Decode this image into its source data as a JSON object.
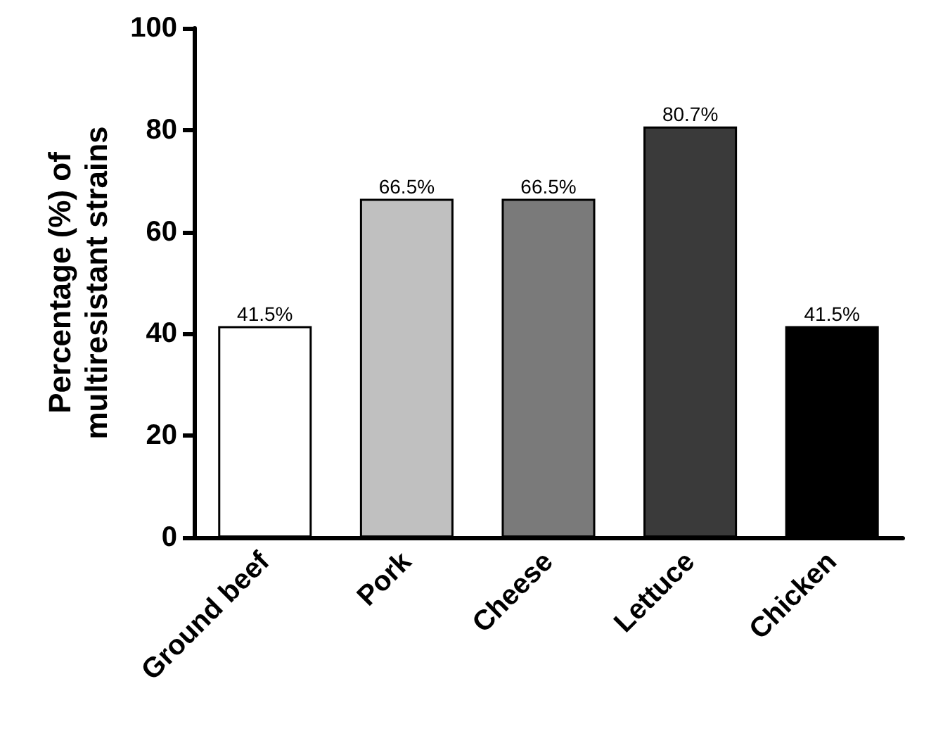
{
  "chart_data": {
    "type": "bar",
    "ylabel": "Percentage (%) of\nmultiresistant strains",
    "categories": [
      "Ground beef",
      "Pork",
      "Cheese",
      "Lettuce",
      "Chicken"
    ],
    "values": [
      41.5,
      66.5,
      66.5,
      80.7,
      41.5
    ],
    "colors": [
      "#ffffff",
      "#c0c0c0",
      "#7a7a7a",
      "#3a3a3a",
      "#000000"
    ],
    "value_labels": [
      "41.5%",
      "66.5%",
      "66.5%",
      "80.7%",
      "41.5%"
    ],
    "ylim": [
      0,
      100
    ],
    "yticks": [
      0,
      20,
      40,
      60,
      80,
      100
    ],
    "grid": false
  }
}
